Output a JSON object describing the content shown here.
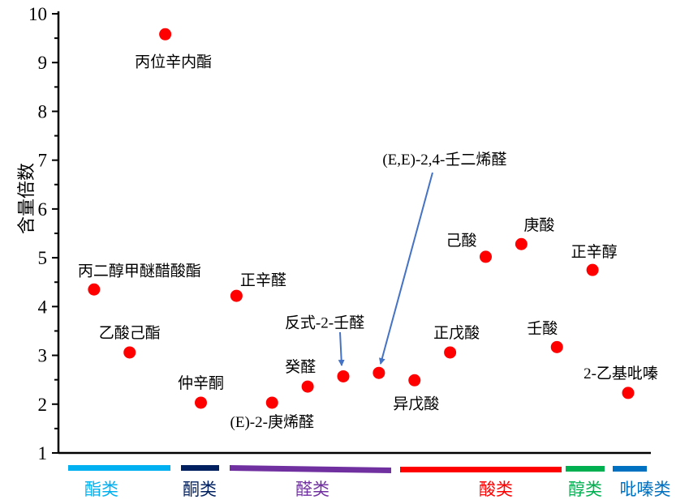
{
  "chart_data": {
    "type": "scatter",
    "title": "",
    "xlabel": "",
    "ylabel": "含量倍数",
    "ylim": [
      1,
      10
    ],
    "yticks": [
      "1",
      "2",
      "3",
      "4",
      "5",
      "6",
      "7",
      "8",
      "9",
      "10"
    ],
    "grid": false,
    "marker_color": "#ff0000",
    "points": [
      {
        "label": "丙二醇甲醚醋酸酯",
        "x": 1,
        "y": 4.35
      },
      {
        "label": "乙酸己酯",
        "x": 2,
        "y": 3.06
      },
      {
        "label": "丙位辛内酯",
        "x": 3,
        "y": 9.58
      },
      {
        "label": "仲辛酮",
        "x": 4,
        "y": 2.03
      },
      {
        "label": "正辛醛",
        "x": 5,
        "y": 4.22
      },
      {
        "label": "(E)-2-庚烯醛",
        "x": 6,
        "y": 2.03
      },
      {
        "label": "癸醛",
        "x": 7,
        "y": 2.36
      },
      {
        "label": "反式-2-壬醛",
        "x": 8,
        "y": 2.57
      },
      {
        "label": "(E,E)-2,4-壬二烯醛",
        "x": 9,
        "y": 2.64
      },
      {
        "label": "异戊酸",
        "x": 10,
        "y": 2.49
      },
      {
        "label": "正戊酸",
        "x": 11,
        "y": 3.06
      },
      {
        "label": "己酸",
        "x": 12,
        "y": 5.02
      },
      {
        "label": "庚酸",
        "x": 13,
        "y": 5.28
      },
      {
        "label": "壬酸",
        "x": 14,
        "y": 3.17
      },
      {
        "label": "正辛醇",
        "x": 15,
        "y": 4.75
      },
      {
        "label": "2-乙基吡嗪",
        "x": 16,
        "y": 2.23
      }
    ],
    "groups": [
      {
        "label": "酯类",
        "color": "#00b0f0",
        "from": 1,
        "to": 3
      },
      {
        "label": "酮类",
        "color": "#002060",
        "from": 4,
        "to": 4
      },
      {
        "label": "醛类",
        "color": "#7030a0",
        "from": 5,
        "to": 9
      },
      {
        "label": "酸类",
        "color": "#ff0000",
        "from": 10,
        "to": 14
      },
      {
        "label": "醇类",
        "color": "#00b050",
        "from": 15,
        "to": 15
      },
      {
        "label": "吡嗪类",
        "color": "#0070c0",
        "from": 16,
        "to": 16
      }
    ],
    "arrow_color": "#4472c4"
  }
}
